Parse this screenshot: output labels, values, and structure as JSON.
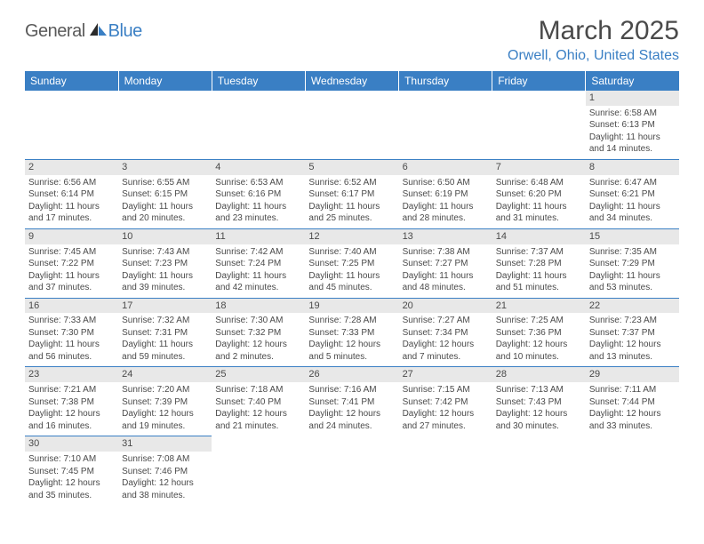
{
  "logo": {
    "part1": "General",
    "part2": "Blue"
  },
  "title": "March 2025",
  "location": "Orwell, Ohio, United States",
  "day_headers": [
    "Sunday",
    "Monday",
    "Tuesday",
    "Wednesday",
    "Thursday",
    "Friday",
    "Saturday"
  ],
  "colors": {
    "header_bg": "#3a7fc4",
    "header_text": "#ffffff",
    "daynum_bg": "#e8e8e8",
    "border": "#3a7fc4",
    "text": "#4a4a4a",
    "logo_blue": "#3a7fc4",
    "logo_gray": "#5a5a5a"
  },
  "weeks": [
    [
      null,
      null,
      null,
      null,
      null,
      null,
      {
        "n": "1",
        "sunrise": "Sunrise: 6:58 AM",
        "sunset": "Sunset: 6:13 PM",
        "daylight": "Daylight: 11 hours and 14 minutes."
      }
    ],
    [
      {
        "n": "2",
        "sunrise": "Sunrise: 6:56 AM",
        "sunset": "Sunset: 6:14 PM",
        "daylight": "Daylight: 11 hours and 17 minutes."
      },
      {
        "n": "3",
        "sunrise": "Sunrise: 6:55 AM",
        "sunset": "Sunset: 6:15 PM",
        "daylight": "Daylight: 11 hours and 20 minutes."
      },
      {
        "n": "4",
        "sunrise": "Sunrise: 6:53 AM",
        "sunset": "Sunset: 6:16 PM",
        "daylight": "Daylight: 11 hours and 23 minutes."
      },
      {
        "n": "5",
        "sunrise": "Sunrise: 6:52 AM",
        "sunset": "Sunset: 6:17 PM",
        "daylight": "Daylight: 11 hours and 25 minutes."
      },
      {
        "n": "6",
        "sunrise": "Sunrise: 6:50 AM",
        "sunset": "Sunset: 6:19 PM",
        "daylight": "Daylight: 11 hours and 28 minutes."
      },
      {
        "n": "7",
        "sunrise": "Sunrise: 6:48 AM",
        "sunset": "Sunset: 6:20 PM",
        "daylight": "Daylight: 11 hours and 31 minutes."
      },
      {
        "n": "8",
        "sunrise": "Sunrise: 6:47 AM",
        "sunset": "Sunset: 6:21 PM",
        "daylight": "Daylight: 11 hours and 34 minutes."
      }
    ],
    [
      {
        "n": "9",
        "sunrise": "Sunrise: 7:45 AM",
        "sunset": "Sunset: 7:22 PM",
        "daylight": "Daylight: 11 hours and 37 minutes."
      },
      {
        "n": "10",
        "sunrise": "Sunrise: 7:43 AM",
        "sunset": "Sunset: 7:23 PM",
        "daylight": "Daylight: 11 hours and 39 minutes."
      },
      {
        "n": "11",
        "sunrise": "Sunrise: 7:42 AM",
        "sunset": "Sunset: 7:24 PM",
        "daylight": "Daylight: 11 hours and 42 minutes."
      },
      {
        "n": "12",
        "sunrise": "Sunrise: 7:40 AM",
        "sunset": "Sunset: 7:25 PM",
        "daylight": "Daylight: 11 hours and 45 minutes."
      },
      {
        "n": "13",
        "sunrise": "Sunrise: 7:38 AM",
        "sunset": "Sunset: 7:27 PM",
        "daylight": "Daylight: 11 hours and 48 minutes."
      },
      {
        "n": "14",
        "sunrise": "Sunrise: 7:37 AM",
        "sunset": "Sunset: 7:28 PM",
        "daylight": "Daylight: 11 hours and 51 minutes."
      },
      {
        "n": "15",
        "sunrise": "Sunrise: 7:35 AM",
        "sunset": "Sunset: 7:29 PM",
        "daylight": "Daylight: 11 hours and 53 minutes."
      }
    ],
    [
      {
        "n": "16",
        "sunrise": "Sunrise: 7:33 AM",
        "sunset": "Sunset: 7:30 PM",
        "daylight": "Daylight: 11 hours and 56 minutes."
      },
      {
        "n": "17",
        "sunrise": "Sunrise: 7:32 AM",
        "sunset": "Sunset: 7:31 PM",
        "daylight": "Daylight: 11 hours and 59 minutes."
      },
      {
        "n": "18",
        "sunrise": "Sunrise: 7:30 AM",
        "sunset": "Sunset: 7:32 PM",
        "daylight": "Daylight: 12 hours and 2 minutes."
      },
      {
        "n": "19",
        "sunrise": "Sunrise: 7:28 AM",
        "sunset": "Sunset: 7:33 PM",
        "daylight": "Daylight: 12 hours and 5 minutes."
      },
      {
        "n": "20",
        "sunrise": "Sunrise: 7:27 AM",
        "sunset": "Sunset: 7:34 PM",
        "daylight": "Daylight: 12 hours and 7 minutes."
      },
      {
        "n": "21",
        "sunrise": "Sunrise: 7:25 AM",
        "sunset": "Sunset: 7:36 PM",
        "daylight": "Daylight: 12 hours and 10 minutes."
      },
      {
        "n": "22",
        "sunrise": "Sunrise: 7:23 AM",
        "sunset": "Sunset: 7:37 PM",
        "daylight": "Daylight: 12 hours and 13 minutes."
      }
    ],
    [
      {
        "n": "23",
        "sunrise": "Sunrise: 7:21 AM",
        "sunset": "Sunset: 7:38 PM",
        "daylight": "Daylight: 12 hours and 16 minutes."
      },
      {
        "n": "24",
        "sunrise": "Sunrise: 7:20 AM",
        "sunset": "Sunset: 7:39 PM",
        "daylight": "Daylight: 12 hours and 19 minutes."
      },
      {
        "n": "25",
        "sunrise": "Sunrise: 7:18 AM",
        "sunset": "Sunset: 7:40 PM",
        "daylight": "Daylight: 12 hours and 21 minutes."
      },
      {
        "n": "26",
        "sunrise": "Sunrise: 7:16 AM",
        "sunset": "Sunset: 7:41 PM",
        "daylight": "Daylight: 12 hours and 24 minutes."
      },
      {
        "n": "27",
        "sunrise": "Sunrise: 7:15 AM",
        "sunset": "Sunset: 7:42 PM",
        "daylight": "Daylight: 12 hours and 27 minutes."
      },
      {
        "n": "28",
        "sunrise": "Sunrise: 7:13 AM",
        "sunset": "Sunset: 7:43 PM",
        "daylight": "Daylight: 12 hours and 30 minutes."
      },
      {
        "n": "29",
        "sunrise": "Sunrise: 7:11 AM",
        "sunset": "Sunset: 7:44 PM",
        "daylight": "Daylight: 12 hours and 33 minutes."
      }
    ],
    [
      {
        "n": "30",
        "sunrise": "Sunrise: 7:10 AM",
        "sunset": "Sunset: 7:45 PM",
        "daylight": "Daylight: 12 hours and 35 minutes."
      },
      {
        "n": "31",
        "sunrise": "Sunrise: 7:08 AM",
        "sunset": "Sunset: 7:46 PM",
        "daylight": "Daylight: 12 hours and 38 minutes."
      },
      null,
      null,
      null,
      null,
      null
    ]
  ]
}
